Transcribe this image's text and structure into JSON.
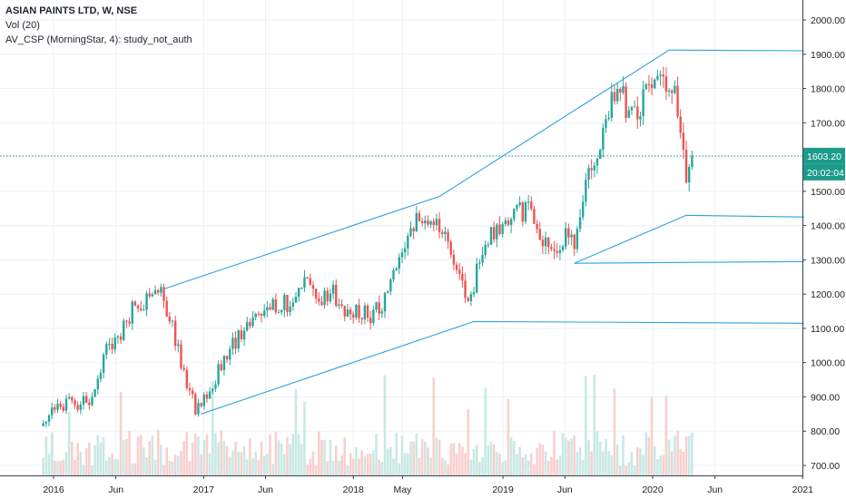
{
  "legend": {
    "title": "ASIAN PAINTS LTD, W, NSE",
    "volume": "Vol (20)",
    "study": "AV_CSP (MorningStar, 4): study_not_auth"
  },
  "colors": {
    "up": "#26a69a",
    "down": "#ef5350",
    "volume_up": "#c9e9e4",
    "volume_down": "#f8d0cf",
    "trendline": "#2aa2e0",
    "badge": "#1c9b8b",
    "grid": "#eef0f3",
    "axis": "#3a3f4b"
  },
  "current": {
    "price": "1603.20",
    "time": "20:02:04",
    "value": 1603.2
  },
  "chart_data": {
    "type": "candlestick",
    "title": "ASIAN PAINTS LTD, W, NSE",
    "y_ticks": [
      "2000.00",
      "1900.00",
      "1800.00",
      "1700.00",
      "1600.00",
      "1500.00",
      "1400.00",
      "1300.00",
      "1200.00",
      "1100.00",
      "1000.00",
      "900.00",
      "800.00",
      "700.00"
    ],
    "x_ticks": [
      "2016",
      "Jun",
      "2017",
      "Jun",
      "2018",
      "May",
      "2019",
      "Jun",
      "2020",
      "Jun",
      "2021"
    ],
    "ylim": [
      690,
      2030
    ],
    "grid": true,
    "price_path": [
      [
        "2015-12-07",
        840
      ],
      [
        "2016-01-25",
        880
      ],
      [
        "2016-03-07",
        875
      ],
      [
        "2016-04-04",
        900
      ],
      [
        "2016-05-02",
        1020
      ],
      [
        "2016-06-06",
        1070
      ],
      [
        "2016-07-11",
        1160
      ],
      [
        "2016-08-08",
        1170
      ],
      [
        "2016-09-05",
        1210
      ],
      [
        "2016-09-26",
        1195
      ],
      [
        "2016-10-17",
        1100
      ],
      [
        "2016-11-07",
        1000
      ],
      [
        "2016-12-12",
        870
      ],
      [
        "2017-01-09",
        900
      ],
      [
        "2017-02-06",
        980
      ],
      [
        "2017-03-13",
        1050
      ],
      [
        "2017-05-01",
        1130
      ],
      [
        "2017-06-05",
        1160
      ],
      [
        "2017-07-24",
        1170
      ],
      [
        "2017-09-04",
        1230
      ],
      [
        "2017-10-09",
        1190
      ],
      [
        "2017-11-13",
        1200
      ],
      [
        "2017-12-18",
        1150
      ],
      [
        "2018-01-29",
        1140
      ],
      [
        "2018-03-05",
        1150
      ],
      [
        "2018-04-09",
        1250
      ],
      [
        "2018-05-07",
        1360
      ],
      [
        "2018-06-11",
        1420
      ],
      [
        "2018-07-09",
        1400
      ],
      [
        "2018-08-13",
        1370
      ],
      [
        "2018-09-10",
        1250
      ],
      [
        "2018-10-08",
        1170
      ],
      [
        "2018-11-05",
        1300
      ],
      [
        "2018-12-03",
        1370
      ],
      [
        "2019-01-07",
        1400
      ],
      [
        "2019-02-11",
        1440
      ],
      [
        "2019-03-11",
        1450
      ],
      [
        "2019-04-08",
        1360
      ],
      [
        "2019-05-06",
        1330
      ],
      [
        "2019-06-03",
        1380
      ],
      [
        "2019-06-24",
        1350
      ],
      [
        "2019-07-15",
        1480
      ],
      [
        "2019-08-12",
        1600
      ],
      [
        "2019-09-09",
        1720
      ],
      [
        "2019-10-07",
        1780
      ],
      [
        "2019-11-04",
        1750
      ],
      [
        "2019-12-02",
        1740
      ],
      [
        "2019-12-30",
        1800
      ],
      [
        "2020-01-27",
        1840
      ],
      [
        "2020-02-24",
        1790
      ],
      [
        "2020-03-09",
        1700
      ],
      [
        "2020-03-23",
        1560
      ],
      [
        "2020-04-06",
        1603
      ]
    ],
    "trendlines": [
      {
        "name": "upper-channel",
        "points": [
          [
            "2016-09-26",
            1215
          ],
          [
            "2018-07-30",
            1485
          ],
          [
            "2020-02-10",
            1912
          ]
        ]
      },
      {
        "name": "lower-channel",
        "points": [
          [
            "2016-12-26",
            850
          ],
          [
            "2018-10-22",
            1120
          ]
        ]
      },
      {
        "name": "lower-channel-2",
        "points": [
          [
            "2019-06-24",
            1290
          ],
          [
            "2020-03-23",
            1430
          ]
        ]
      },
      {
        "name": "level-1912",
        "points": [
          [
            "2020-02-10",
            1912
          ],
          [
            "2021-01-04",
            1910
          ]
        ]
      },
      {
        "name": "level-1430",
        "points": [
          [
            "2020-03-23",
            1430
          ],
          [
            "2021-01-04",
            1425
          ]
        ]
      },
      {
        "name": "level-1290",
        "points": [
          [
            "2019-06-24",
            1290
          ],
          [
            "2021-01-04",
            1295
          ]
        ]
      },
      {
        "name": "level-1120",
        "points": [
          [
            "2018-10-22",
            1120
          ],
          [
            "2021-01-04",
            1115
          ]
        ]
      }
    ],
    "volume_pane_ylim": [
      0,
      1
    ],
    "current_price": 1603.2
  }
}
